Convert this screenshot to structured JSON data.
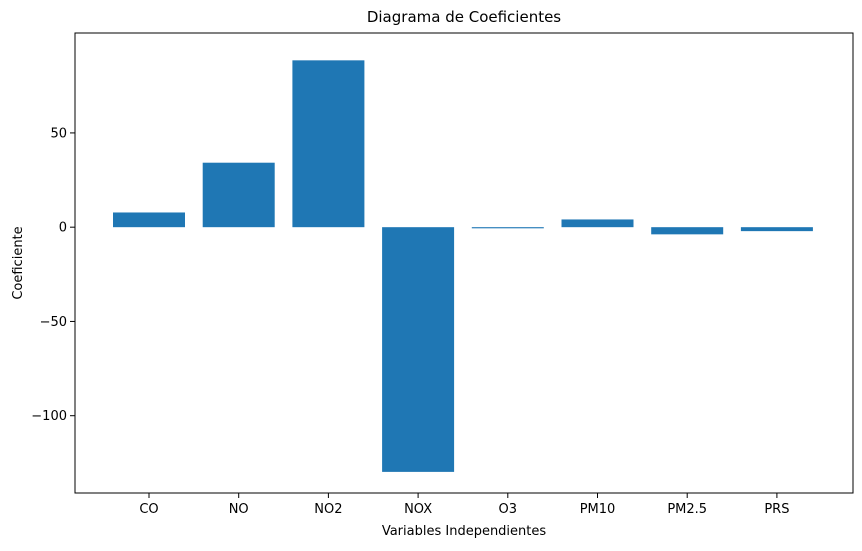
{
  "chart_data": {
    "type": "bar",
    "title": "Diagrama de Coeficientes",
    "xlabel": "Variables Independientes",
    "ylabel": "Coeficiente",
    "categories": [
      "CO",
      "NO",
      "NO2",
      "NOX",
      "O3",
      "PM10",
      "PM2.5",
      "PRS"
    ],
    "values": [
      7.8,
      34.2,
      88.5,
      -129.8,
      -0.6,
      4.1,
      -3.8,
      -2.1
    ],
    "ylim": [
      -141,
      103
    ],
    "yticks": [
      -100,
      -50,
      0,
      50
    ],
    "ytick_labels": [
      "−100",
      "−50",
      "0",
      "50"
    ],
    "grid": false,
    "bar_color": "#1f77b4"
  }
}
